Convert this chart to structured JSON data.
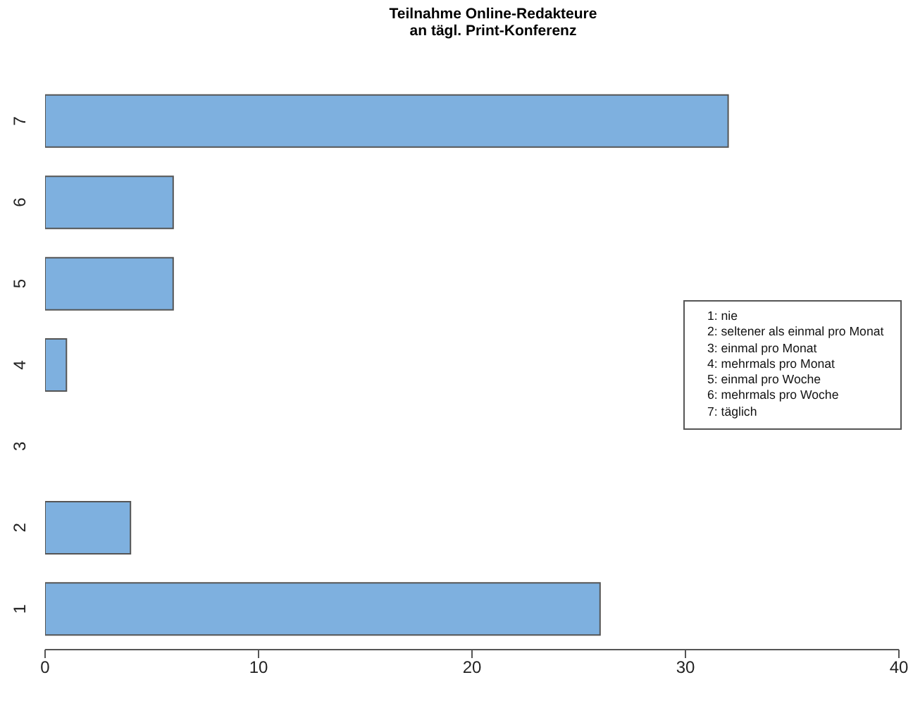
{
  "chart_data": {
    "type": "bar",
    "orientation": "horizontal",
    "title": "Teilnahme Online-Redakteure\nan tägl. Print-Konferenz",
    "categories": [
      "7",
      "6",
      "5",
      "4",
      "3",
      "2",
      "1"
    ],
    "values": [
      32,
      6,
      6,
      1,
      0,
      4,
      26
    ],
    "color": "#7eb0df",
    "xlim": [
      0,
      40
    ],
    "xticks": [
      0,
      10,
      20,
      30,
      40
    ],
    "grid": false,
    "annotations": [
      "1: nie",
      "2: seltener als einmal pro Monat",
      "3: einmal pro Monat",
      "4: mehrmals pro Monat",
      "5: einmal pro Woche",
      "6: mehrmals pro Woche",
      "7: täglich"
    ]
  }
}
